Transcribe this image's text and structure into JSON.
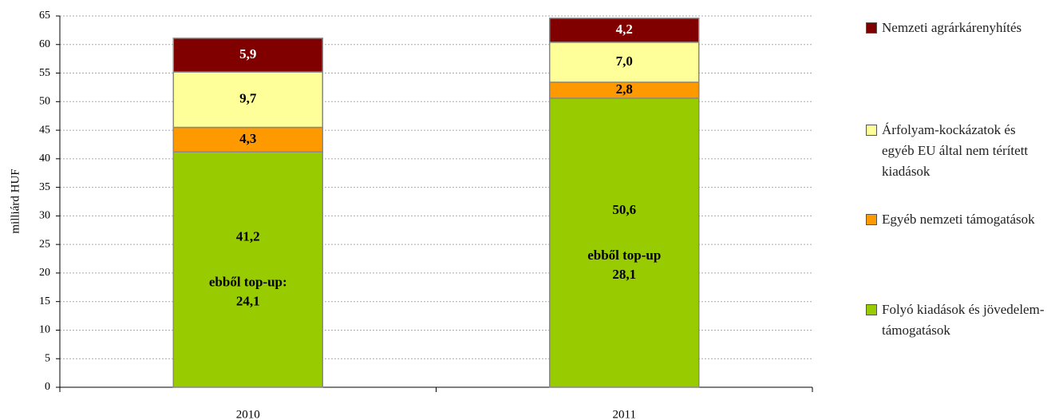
{
  "chart_data": {
    "type": "stacked_bar",
    "y_label": "milliárd HUF",
    "categories": [
      "2010",
      "2011"
    ],
    "series": [
      {
        "name": "Folyó kiadások és jövedelem-támogatások",
        "color": "#99cc00",
        "values": [
          41.2,
          50.6
        ],
        "value_labels": [
          "41,2",
          "50,6"
        ],
        "annotations": [
          [
            "ebből top-up:",
            "24,1"
          ],
          [
            "ebből top-up",
            "28,1"
          ]
        ]
      },
      {
        "name": "Egyéb nemzeti támogatások",
        "color": "#ff9900",
        "values": [
          4.3,
          2.8
        ],
        "value_labels": [
          "4,3",
          "2,8"
        ]
      },
      {
        "name": "Árfolyam-kockázatok és egyéb EU által nem térített kiadások",
        "color": "#ffff99",
        "values": [
          9.7,
          7.0
        ],
        "value_labels": [
          "9,7",
          "7,0"
        ]
      },
      {
        "name": "Nemzeti agrárkárenyhítés",
        "color": "#800000",
        "values": [
          5.9,
          4.2
        ],
        "value_labels": [
          "5,9",
          "4,2"
        ]
      }
    ],
    "ylim": [
      0,
      65
    ],
    "yticks": [
      0,
      5,
      10,
      15,
      20,
      25,
      30,
      35,
      40,
      45,
      50,
      55,
      60,
      65
    ],
    "grid": true,
    "legend": "right"
  }
}
